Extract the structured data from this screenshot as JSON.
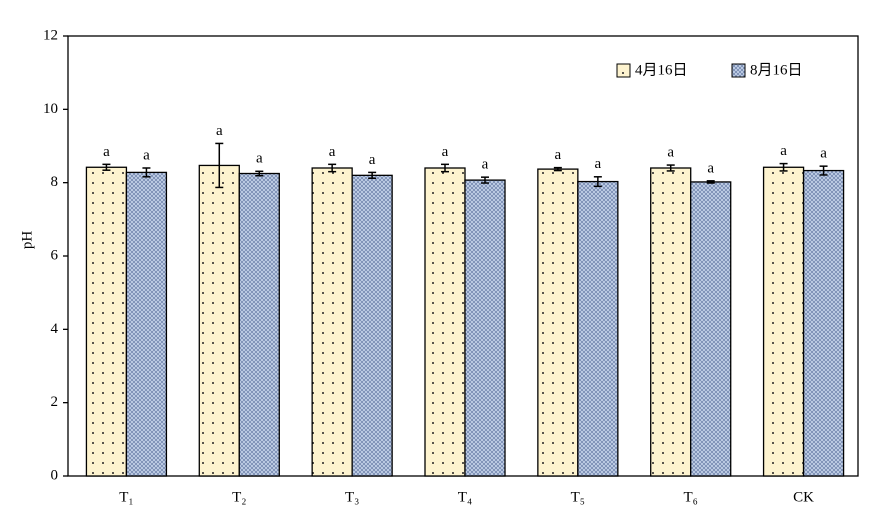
{
  "chart_data": {
    "type": "bar",
    "y_label": "pH",
    "categories": [
      "T₁",
      "T₂",
      "T₃",
      "T₄",
      "T₅",
      "T₆",
      "CK"
    ],
    "series": [
      {
        "name": "4月16日",
        "color": "#fdf3cf",
        "pattern": "dots",
        "values": [
          8.42,
          8.47,
          8.4,
          8.4,
          8.37,
          8.4,
          8.42
        ],
        "errors": [
          0.08,
          0.6,
          0.1,
          0.1,
          0.04,
          0.08,
          0.1
        ],
        "letters": [
          "a",
          "a",
          "a",
          "a",
          "a",
          "a",
          "a"
        ]
      },
      {
        "name": "8月16日",
        "color": "#c5d3ea",
        "pattern": "crosshatch",
        "values": [
          8.28,
          8.25,
          8.2,
          8.07,
          8.03,
          8.02,
          8.33
        ],
        "errors": [
          0.12,
          0.06,
          0.08,
          0.08,
          0.13,
          0.03,
          0.12
        ],
        "letters": [
          "a",
          "a",
          "a",
          "a",
          "a",
          "a",
          "a"
        ]
      }
    ],
    "ylim": [
      0,
      12
    ],
    "yticks": [
      0,
      2,
      4,
      6,
      8,
      10,
      12
    ],
    "grid": false,
    "legend": "upper right"
  }
}
